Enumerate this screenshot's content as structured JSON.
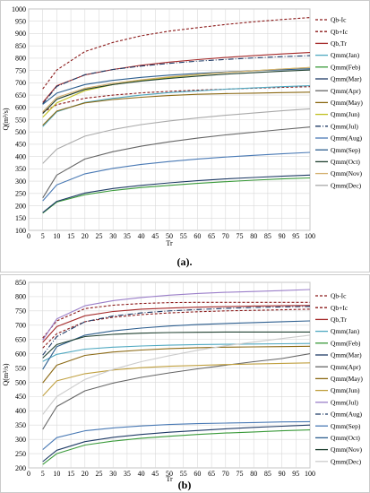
{
  "chart_data": [
    {
      "type": "line",
      "caption": "(a).",
      "xlabel": "Tr",
      "ylabel": "Q(m³/s)",
      "xlim": [
        0,
        100
      ],
      "ylim": [
        100,
        1000
      ],
      "xticks": [
        0,
        5,
        10,
        15,
        20,
        25,
        30,
        35,
        40,
        45,
        50,
        55,
        60,
        65,
        70,
        75,
        80,
        85,
        90,
        95,
        100
      ],
      "yticks": [
        100,
        150,
        200,
        250,
        300,
        350,
        400,
        450,
        500,
        550,
        600,
        650,
        700,
        750,
        800,
        850,
        900,
        950,
        1000
      ],
      "grid": true,
      "legend_position": "right",
      "x": [
        5,
        10,
        20,
        30,
        40,
        50,
        60,
        70,
        80,
        90,
        100
      ],
      "series": [
        {
          "name": "Qb-Ic",
          "color": "#8b1a1a",
          "dash": "3,2",
          "values": [
            580,
            611,
            637,
            650,
            659,
            665,
            670,
            674,
            678,
            681,
            684
          ]
        },
        {
          "name": "Qb+Ic",
          "color": "#8b1a1a",
          "dash": "3,2",
          "values": [
            675,
            752,
            827,
            864,
            891,
            910,
            924,
            937,
            948,
            957,
            965
          ]
        },
        {
          "name": "Qb,Tr",
          "color": "#a52a2a",
          "dash": "",
          "values": [
            620,
            688,
            732,
            754,
            771,
            784,
            794,
            803,
            810,
            817,
            823
          ]
        },
        {
          "name": "Qmm(Jan)",
          "color": "#4fa8c0",
          "dash": "",
          "values": [
            522,
            582,
            620,
            637,
            650,
            660,
            667,
            674,
            679,
            684,
            688
          ]
        },
        {
          "name": "Qmm(Feb)",
          "color": "#3a9a3a",
          "dash": "",
          "values": [
            170,
            215,
            245,
            262,
            274,
            283,
            291,
            298,
            304,
            309,
            313
          ]
        },
        {
          "name": "Qmm(Mar)",
          "color": "#1f3b66",
          "dash": "",
          "values": [
            172,
            218,
            252,
            270,
            283,
            293,
            302,
            309,
            315,
            320,
            325
          ]
        },
        {
          "name": "Qmm(Apr)",
          "color": "#666666",
          "dash": "",
          "values": [
            232,
            325,
            390,
            420,
            442,
            460,
            475,
            488,
            499,
            510,
            520
          ]
        },
        {
          "name": "Qmm(May)",
          "color": "#8b6914",
          "dash": "",
          "values": [
            527,
            585,
            618,
            632,
            641,
            648,
            653,
            656,
            658,
            660,
            662
          ]
        },
        {
          "name": "Qmm(Jun)",
          "color": "#c0c020",
          "dash": "",
          "values": [
            560,
            618,
            668,
            693,
            709,
            722,
            733,
            742,
            749,
            756,
            762
          ]
        },
        {
          "name": "Qmm(Jul)",
          "color": "#1f3b66",
          "dash": "6,2,1,2",
          "values": [
            614,
            685,
            733,
            754,
            768,
            779,
            788,
            795,
            801,
            806,
            810
          ]
        },
        {
          "name": "Qmm(Aug)",
          "color": "#4a7ab5",
          "dash": "",
          "values": [
            220,
            285,
            330,
            352,
            368,
            380,
            390,
            398,
            405,
            411,
            417
          ]
        },
        {
          "name": "Qmm(Sep)",
          "color": "#2e5f8f",
          "dash": "",
          "values": [
            612,
            658,
            693,
            710,
            722,
            731,
            738,
            744,
            749,
            753,
            757
          ]
        },
        {
          "name": "Qmm(Oct)",
          "color": "#1f4030",
          "dash": "",
          "values": [
            575,
            633,
            673,
            693,
            707,
            718,
            727,
            735,
            741,
            747,
            752
          ]
        },
        {
          "name": "Qmm(Nov)",
          "color": "#d4b070",
          "dash": "",
          "values": [
            582,
            640,
            678,
            698,
            712,
            724,
            734,
            742,
            749,
            756,
            762
          ]
        },
        {
          "name": "Qmm(Dec)",
          "color": "#aaaaaa",
          "dash": "",
          "values": [
            372,
            430,
            483,
            510,
            530,
            545,
            557,
            568,
            577,
            586,
            594
          ]
        }
      ]
    },
    {
      "type": "line",
      "caption": "(b)",
      "xlabel": "Tr",
      "ylabel": "Q(m³/s)",
      "xlim": [
        0,
        100
      ],
      "ylim": [
        200,
        850
      ],
      "xticks": [
        0,
        5,
        10,
        15,
        20,
        25,
        30,
        35,
        40,
        45,
        50,
        55,
        60,
        65,
        70,
        75,
        80,
        85,
        90,
        95,
        100
      ],
      "yticks": [
        200,
        250,
        300,
        350,
        400,
        450,
        500,
        550,
        600,
        650,
        700,
        750,
        800,
        850
      ],
      "grid": true,
      "legend_position": "right",
      "x": [
        5,
        10,
        20,
        30,
        40,
        50,
        60,
        70,
        80,
        90,
        100
      ],
      "series": [
        {
          "name": "Qb-Ic",
          "color": "#8b1a1a",
          "dash": "3,2",
          "values": [
            620,
            670,
            712,
            728,
            737,
            743,
            747,
            750,
            752,
            754,
            756
          ]
        },
        {
          "name": "Qb+Ic",
          "color": "#8b1a1a",
          "dash": "3,2",
          "values": [
            655,
            715,
            758,
            770,
            776,
            779,
            780,
            780,
            780,
            780,
            780
          ]
        },
        {
          "name": "Qb,Tr",
          "color": "#a52a2a",
          "dash": "",
          "values": [
            640,
            695,
            733,
            748,
            756,
            760,
            763,
            765,
            767,
            768,
            769
          ]
        },
        {
          "name": "Qmm(Jan)",
          "color": "#4fa8c0",
          "dash": "",
          "values": [
            573,
            598,
            616,
            623,
            627,
            630,
            632,
            633,
            634,
            635,
            636
          ]
        },
        {
          "name": "Qmm(Feb)",
          "color": "#3a9a3a",
          "dash": "",
          "values": [
            212,
            250,
            280,
            294,
            304,
            311,
            317,
            322,
            326,
            330,
            333
          ]
        },
        {
          "name": "Qmm(Mar)",
          "color": "#1f3b66",
          "dash": "",
          "values": [
            222,
            262,
            292,
            307,
            317,
            325,
            331,
            337,
            342,
            346,
            350
          ]
        },
        {
          "name": "Qmm(Apr)",
          "color": "#666666",
          "dash": "",
          "values": [
            335,
            415,
            470,
            497,
            517,
            533,
            547,
            560,
            572,
            583,
            600
          ]
        },
        {
          "name": "Qmm(May)",
          "color": "#8b6914",
          "dash": "",
          "values": [
            498,
            560,
            594,
            606,
            613,
            618,
            621,
            623,
            624,
            625,
            626
          ]
        },
        {
          "name": "Qmm(Jun)",
          "color": "#c0a040",
          "dash": "",
          "values": [
            452,
            505,
            530,
            543,
            551,
            556,
            559,
            562,
            564,
            566,
            568
          ]
        },
        {
          "name": "Qmm(Jul)",
          "color": "#9b7fc9",
          "dash": "",
          "values": [
            648,
            722,
            768,
            786,
            797,
            805,
            811,
            815,
            818,
            821,
            825
          ]
        },
        {
          "name": "Qmm(Aug)",
          "color": "#1f3b66",
          "dash": "6,2,1,2",
          "values": [
            595,
            660,
            712,
            732,
            743,
            750,
            755,
            759,
            762,
            764,
            766
          ]
        },
        {
          "name": "Qmm(Sep)",
          "color": "#4a7ab5",
          "dash": "",
          "values": [
            264,
            306,
            330,
            340,
            347,
            352,
            355,
            357,
            359,
            361,
            362
          ]
        },
        {
          "name": "Qmm(Oct)",
          "color": "#2e5f8f",
          "dash": "",
          "values": [
            545,
            625,
            665,
            680,
            690,
            697,
            702,
            706,
            709,
            712,
            715
          ]
        },
        {
          "name": "Qmm(Nov)",
          "color": "#1f4030",
          "dash": "",
          "values": [
            585,
            632,
            660,
            668,
            672,
            674,
            675,
            676,
            676,
            676,
            676
          ]
        },
        {
          "name": "Qmm(Dec)",
          "color": "#cccccc",
          "dash": "",
          "values": [
            387,
            450,
            510,
            545,
            572,
            593,
            612,
            628,
            641,
            653,
            665
          ]
        }
      ]
    }
  ]
}
